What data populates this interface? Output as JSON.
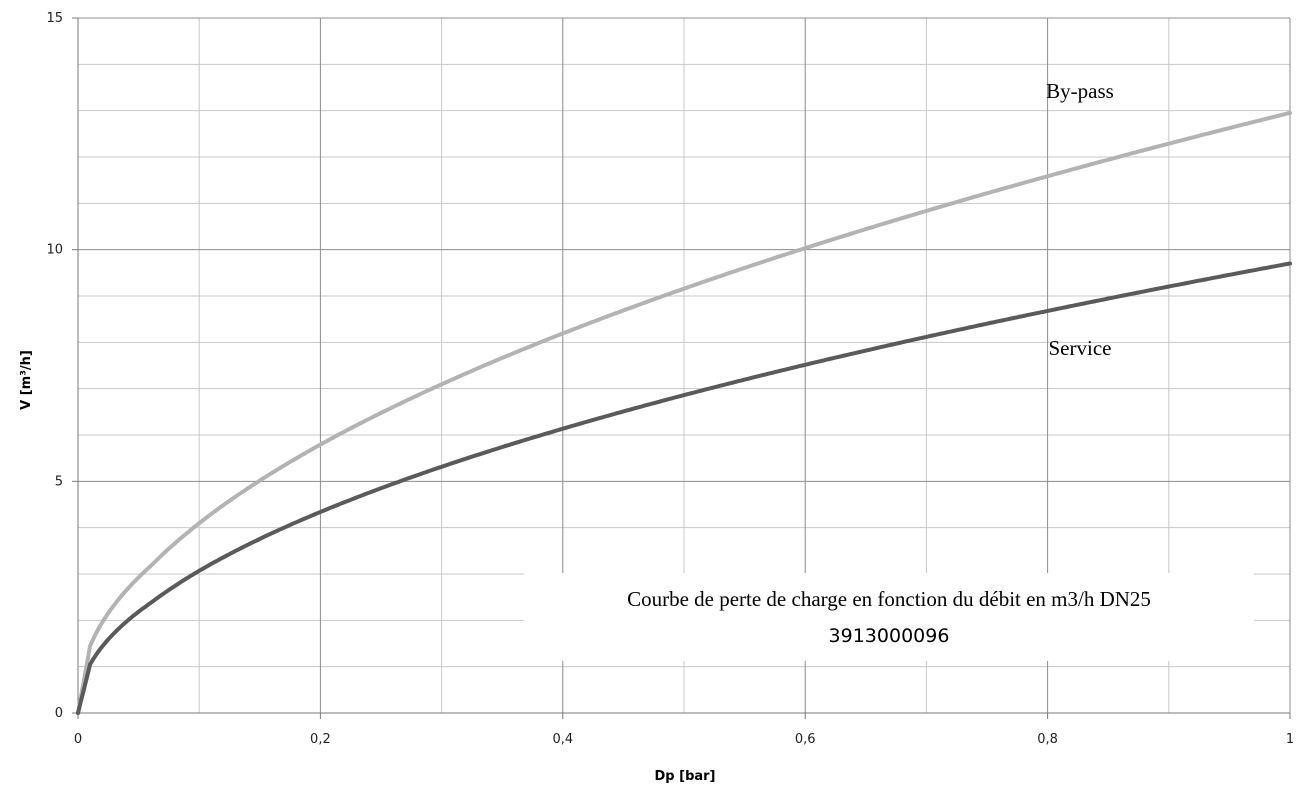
{
  "chart_data": {
    "type": "line",
    "xlabel": "Dp [bar]",
    "ylabel": "V  [m³/h]",
    "xlim": [
      0,
      1
    ],
    "ylim": [
      0,
      15
    ],
    "x_ticks": [
      "0",
      "0,2",
      "0,4",
      "0,6",
      "0,8",
      "1"
    ],
    "y_ticks": [
      "0",
      "5",
      "10",
      "15"
    ],
    "grid": true,
    "legend": "none",
    "series": [
      {
        "name": "By-pass",
        "color": "#b3b3b3",
        "x": [
          0,
          0.01,
          0.02,
          0.05,
          0.1,
          0.2,
          0.3,
          0.4,
          0.5,
          0.6,
          0.7,
          0.8,
          0.9,
          1.0
        ],
        "y": [
          0,
          1.45,
          2.0,
          3.0,
          4.1,
          5.9,
          7.2,
          8.3,
          9.3,
          10.2,
          11.0,
          11.8,
          12.5,
          13.15
        ]
      },
      {
        "name": "Service",
        "color": "#5a5a5a",
        "x": [
          0,
          0.01,
          0.02,
          0.05,
          0.1,
          0.2,
          0.3,
          0.4,
          0.5,
          0.6,
          0.7,
          0.8,
          0.9,
          1.0
        ],
        "y": [
          0,
          1.05,
          1.45,
          2.25,
          3.1,
          4.4,
          5.4,
          6.2,
          6.95,
          7.6,
          8.2,
          8.8,
          9.35,
          9.85
        ]
      }
    ],
    "annotations": {
      "line1": "Courbe de perte de charge en fonction du débit en m3/h DN25",
      "line2": "3913000096"
    }
  }
}
